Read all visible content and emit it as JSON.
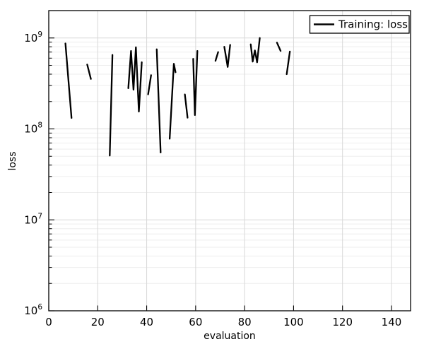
{
  "chart_data": {
    "type": "line",
    "title": "",
    "xlabel": "evaluation",
    "ylabel": "loss",
    "x_scale": "linear",
    "y_scale": "log",
    "xlim": [
      0,
      147.8
    ],
    "ylim": [
      1000000.0,
      2000000000.0
    ],
    "x_ticks": [
      0,
      20,
      40,
      60,
      80,
      100,
      120,
      140
    ],
    "y_tick_exponents": [
      6,
      7,
      8,
      9
    ],
    "grid": true,
    "legend": {
      "position": "top-right",
      "entries": [
        {
          "label": "Training: loss",
          "color": "#000000"
        }
      ]
    },
    "series": [
      {
        "name": "Training: loss",
        "color": "#000000",
        "line_width": 2.3,
        "segments": [
          [
            [
              6.8,
              870000000.0
            ],
            [
              9.3,
              132000000.0
            ]
          ],
          [
            [
              15.7,
              510000000.0
            ],
            [
              17.2,
              355000000.0
            ]
          ],
          [
            [
              24.9,
              51000000.0
            ],
            [
              26.0,
              650000000.0
            ]
          ],
          [
            [
              32.5,
              280000000.0
            ],
            [
              33.6,
              720000000.0
            ],
            [
              34.6,
              270000000.0
            ],
            [
              35.6,
              790000000.0
            ],
            [
              36.8,
              155000000.0
            ],
            [
              38.0,
              540000000.0
            ]
          ],
          [
            [
              40.6,
              240000000.0
            ],
            [
              41.8,
              390000000.0
            ]
          ],
          [
            [
              44.1,
              750000000.0
            ],
            [
              45.7,
              55000000.0
            ]
          ],
          [
            [
              49.4,
              78000000.0
            ],
            [
              51.1,
              520000000.0
            ],
            [
              51.8,
              420000000.0
            ]
          ],
          [
            [
              55.6,
              240000000.0
            ],
            [
              56.7,
              133000000.0
            ]
          ],
          [
            [
              59.0,
              590000000.0
            ],
            [
              59.7,
              142000000.0
            ],
            [
              60.7,
              720000000.0
            ]
          ],
          [
            [
              68.1,
              560000000.0
            ],
            [
              69.2,
              700000000.0
            ]
          ],
          [
            [
              71.7,
              800000000.0
            ],
            [
              73.1,
              480000000.0
            ],
            [
              74.1,
              840000000.0
            ]
          ],
          [
            [
              82.5,
              850000000.0
            ],
            [
              83.3,
              550000000.0
            ],
            [
              84.2,
              730000000.0
            ],
            [
              85.1,
              540000000.0
            ],
            [
              86.2,
              1000000000.0
            ]
          ],
          [
            [
              93.2,
              890000000.0
            ],
            [
              94.7,
              720000000.0
            ]
          ],
          [
            [
              97.2,
              400000000.0
            ],
            [
              98.5,
              710000000.0
            ]
          ]
        ]
      }
    ]
  },
  "colors": {
    "background": "#ffffff",
    "spine": "#000000",
    "grid_major": "#d8d8d8",
    "grid_minor": "#ededed",
    "tick": "#000000"
  }
}
